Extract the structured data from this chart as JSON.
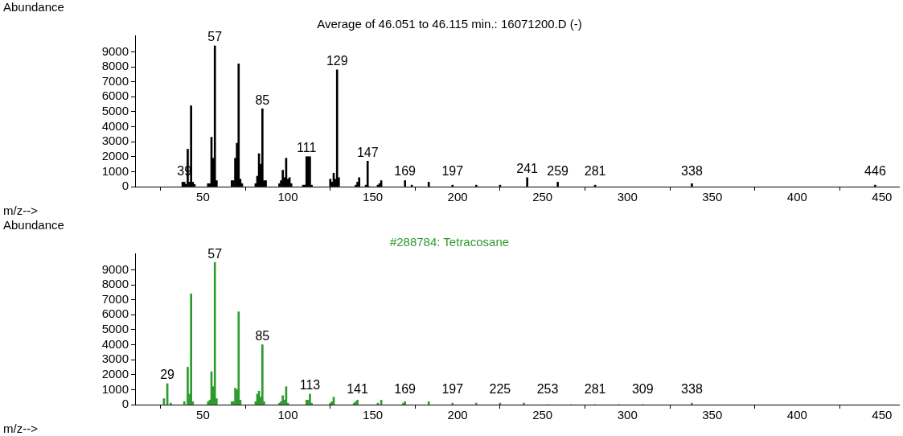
{
  "chart_data": [
    {
      "type": "bar",
      "title": "Average of 46.051 to 46.115 min.: 16071200.D (-)",
      "xlabel": "m/z-->",
      "ylabel": "Abundance",
      "x": [
        38,
        39,
        40,
        41,
        42,
        43,
        44,
        45,
        53,
        54,
        55,
        56,
        57,
        58,
        67,
        68,
        69,
        70,
        71,
        72,
        73,
        81,
        82,
        83,
        84,
        85,
        86,
        87,
        95,
        96,
        97,
        98,
        99,
        100,
        101,
        102,
        109,
        110,
        111,
        112,
        113,
        114,
        125,
        126,
        127,
        128,
        129,
        130,
        140,
        141,
        142,
        146,
        147,
        148,
        153,
        154,
        155,
        169,
        173,
        183,
        197,
        211,
        225,
        241,
        259,
        281,
        338,
        446
      ],
      "values": [
        300,
        300,
        150,
        2500,
        300,
        5400,
        300,
        150,
        200,
        200,
        3300,
        1900,
        9400,
        400,
        400,
        400,
        1900,
        2900,
        8200,
        500,
        200,
        200,
        700,
        2200,
        1500,
        5200,
        400,
        400,
        200,
        400,
        1100,
        600,
        1900,
        500,
        600,
        200,
        100,
        100,
        2000,
        2000,
        2000,
        100,
        500,
        300,
        900,
        500,
        7800,
        600,
        100,
        300,
        600,
        100,
        1700,
        0,
        100,
        200,
        400,
        400,
        100,
        300,
        100,
        100,
        100,
        600,
        300,
        100,
        200,
        100
      ],
      "annotations": [
        {
          "text": "39",
          "x": 39,
          "y": 300
        },
        {
          "text": "57",
          "x": 57,
          "y": 9400
        },
        {
          "text": "85",
          "x": 85,
          "y": 5200
        },
        {
          "text": "111",
          "x": 111,
          "y": 2000
        },
        {
          "text": "129",
          "x": 129,
          "y": 7800
        },
        {
          "text": "147",
          "x": 147,
          "y": 1700
        },
        {
          "text": "169",
          "x": 169,
          "y": 400
        },
        {
          "text": "197",
          "x": 197,
          "y": 100
        },
        {
          "text": "241",
          "x": 241,
          "y": 600
        },
        {
          "text": "259",
          "x": 259,
          "y": 300
        },
        {
          "text": "281",
          "x": 281,
          "y": 100
        },
        {
          "text": "338",
          "x": 338,
          "y": 200
        },
        {
          "text": "446",
          "x": 446,
          "y": 100
        }
      ],
      "color": "#000000",
      "xlim": [
        10,
        460
      ],
      "xticks": [
        50,
        100,
        150,
        200,
        250,
        300,
        350,
        400,
        450
      ],
      "ylim": [
        0,
        10100
      ],
      "yticks": [
        0,
        1000,
        2000,
        3000,
        4000,
        5000,
        6000,
        7000,
        8000,
        9000
      ]
    },
    {
      "type": "bar",
      "title": "#288784: Tetracosane",
      "xlabel": "m/z-->",
      "ylabel": "Abundance",
      "x": [
        27,
        29,
        31,
        39,
        41,
        42,
        43,
        44,
        53,
        54,
        55,
        56,
        57,
        58,
        67,
        68,
        69,
        70,
        71,
        72,
        81,
        82,
        83,
        84,
        85,
        86,
        95,
        96,
        97,
        98,
        99,
        100,
        111,
        112,
        113,
        114,
        125,
        126,
        127,
        139,
        140,
        141,
        153,
        155,
        168,
        169,
        183,
        197,
        211,
        225,
        239,
        253,
        267,
        281,
        295,
        309,
        338
      ],
      "values": [
        400,
        1400,
        100,
        200,
        2500,
        700,
        7400,
        200,
        200,
        300,
        2200,
        1200,
        9500,
        400,
        200,
        200,
        1100,
        1000,
        6200,
        300,
        200,
        700,
        900,
        500,
        4000,
        200,
        100,
        200,
        600,
        300,
        1200,
        100,
        300,
        300,
        700,
        100,
        100,
        200,
        500,
        100,
        200,
        300,
        100,
        300,
        100,
        200,
        200,
        100,
        100,
        100,
        100,
        0,
        0,
        0,
        0,
        0,
        100
      ],
      "annotations": [
        {
          "text": "29",
          "x": 29,
          "y": 1400
        },
        {
          "text": "57",
          "x": 57,
          "y": 9500
        },
        {
          "text": "85",
          "x": 85,
          "y": 4000
        },
        {
          "text": "113",
          "x": 113,
          "y": 700
        },
        {
          "text": "141",
          "x": 141,
          "y": 300
        },
        {
          "text": "169",
          "x": 169,
          "y": 200
        },
        {
          "text": "197",
          "x": 197,
          "y": 100
        },
        {
          "text": "225",
          "x": 225,
          "y": 100
        },
        {
          "text": "253",
          "x": 253,
          "y": 0
        },
        {
          "text": "281",
          "x": 281,
          "y": 0
        },
        {
          "text": "309",
          "x": 309,
          "y": 0
        },
        {
          "text": "338",
          "x": 338,
          "y": 100
        }
      ],
      "color": "#2e9b2e",
      "xlim": [
        10,
        460
      ],
      "xticks": [
        50,
        100,
        150,
        200,
        250,
        300,
        350,
        400,
        450
      ],
      "ylim": [
        0,
        10100
      ],
      "yticks": [
        0,
        1000,
        2000,
        3000,
        4000,
        5000,
        6000,
        7000,
        8000,
        9000
      ]
    }
  ]
}
